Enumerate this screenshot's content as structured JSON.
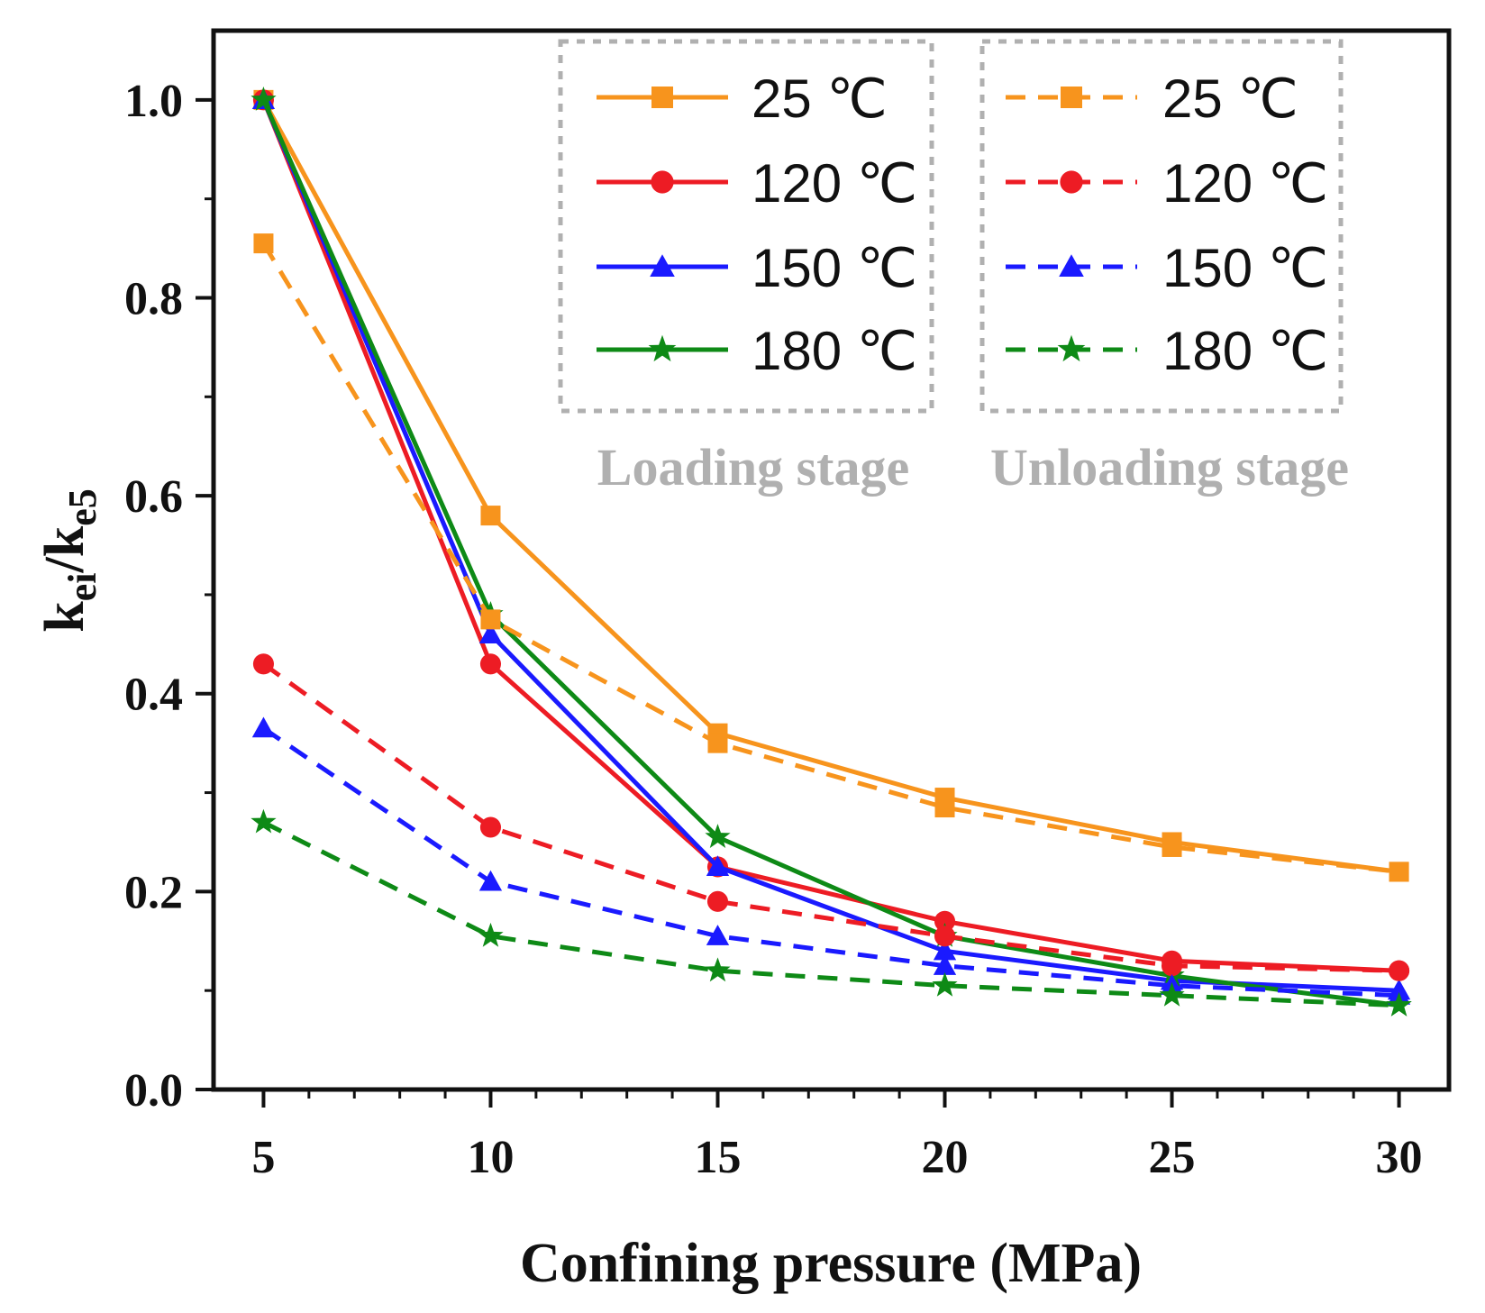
{
  "chart_data": {
    "type": "line",
    "title": "",
    "xlabel": "Confining pressure (MPa)",
    "ylabel": {
      "base": "k",
      "sub1": "ei",
      "sep": "/",
      "base2": "k",
      "sub2": "e5"
    },
    "x": [
      5,
      10,
      15,
      20,
      25,
      30
    ],
    "xticks": [
      "5",
      "10",
      "15",
      "20",
      "25",
      "30"
    ],
    "xlim": [
      3.9,
      31.1
    ],
    "yticks": [
      "0.0",
      "0.2",
      "0.4",
      "0.6",
      "0.8",
      "1.0"
    ],
    "ylim": [
      0.0,
      1.07
    ],
    "grid": false,
    "legend_groups": [
      {
        "label": "Loading stage",
        "position": "top-center",
        "series_indexes": [
          0,
          1,
          2,
          3
        ]
      },
      {
        "label": "Unloading stage",
        "position": "top-right",
        "series_indexes": [
          4,
          5,
          6,
          7
        ]
      }
    ],
    "series": [
      {
        "name": "25 ℃",
        "stage": "Loading stage",
        "color": "#f7941d",
        "dash": "solid",
        "marker": "square",
        "values": [
          1.0,
          0.58,
          0.36,
          0.295,
          0.25,
          0.22
        ]
      },
      {
        "name": "120 ℃",
        "stage": "Loading stage",
        "color": "#ed1c24",
        "dash": "solid",
        "marker": "circle",
        "values": [
          1.0,
          0.43,
          0.225,
          0.17,
          0.13,
          0.12
        ]
      },
      {
        "name": "150 ℃",
        "stage": "Loading stage",
        "color": "#1a1aff",
        "dash": "solid",
        "marker": "triangle",
        "values": [
          1.0,
          0.46,
          0.225,
          0.14,
          0.11,
          0.1
        ]
      },
      {
        "name": "180 ℃",
        "stage": "Loading stage",
        "color": "#0e8a16",
        "dash": "solid",
        "marker": "star",
        "values": [
          1.0,
          0.48,
          0.255,
          0.155,
          0.115,
          0.085
        ]
      },
      {
        "name": "25 ℃",
        "stage": "Unloading stage",
        "color": "#f7941d",
        "dash": "dashed",
        "marker": "square",
        "values": [
          0.855,
          0.475,
          0.35,
          0.285,
          0.245,
          0.22
        ]
      },
      {
        "name": "120 ℃",
        "stage": "Unloading stage",
        "color": "#ed1c24",
        "dash": "dashed",
        "marker": "circle",
        "values": [
          0.43,
          0.265,
          0.19,
          0.155,
          0.125,
          0.12
        ]
      },
      {
        "name": "150 ℃",
        "stage": "Unloading stage",
        "color": "#1a1aff",
        "dash": "dashed",
        "marker": "triangle",
        "values": [
          0.365,
          0.21,
          0.155,
          0.125,
          0.105,
          0.095
        ]
      },
      {
        "name": "180 ℃",
        "stage": "Unloading stage",
        "color": "#0e8a16",
        "dash": "dashed",
        "marker": "star",
        "values": [
          0.27,
          0.155,
          0.12,
          0.105,
          0.095,
          0.085
        ]
      }
    ]
  }
}
